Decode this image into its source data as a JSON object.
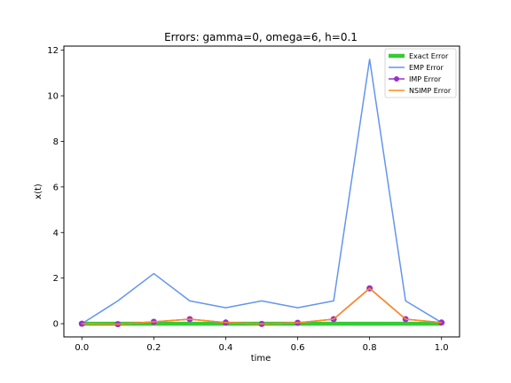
{
  "chart_data": {
    "type": "line",
    "title": "Errors: gamma=0, omega=6, h=0.1",
    "xlabel": "time",
    "ylabel": "x(t)",
    "xlim": [
      -0.05,
      1.05
    ],
    "ylim": [
      -0.58,
      12.18
    ],
    "xticks": [
      "0.0",
      "0.2",
      "0.4",
      "0.6",
      "0.8",
      "1.0"
    ],
    "yticks": [
      "0",
      "2",
      "4",
      "6",
      "8",
      "10",
      "12"
    ],
    "legend_position": "top-right",
    "x": [
      0.0,
      0.1,
      0.2,
      0.3,
      0.4,
      0.5,
      0.6,
      0.7,
      0.8,
      0.9,
      1.0
    ],
    "series": [
      {
        "name": "Exact Error",
        "color": "#32cd32",
        "style": "thick-line",
        "values": [
          0,
          0,
          0,
          0,
          0,
          0,
          0,
          0,
          0,
          0,
          0
        ]
      },
      {
        "name": "EMP Error",
        "color": "#6495ed",
        "style": "line",
        "values": [
          0.0,
          1.0,
          2.2,
          1.0,
          0.7,
          1.0,
          0.7,
          1.0,
          11.6,
          1.0,
          0.05
        ]
      },
      {
        "name": "IMP Error",
        "color": "#9932cc",
        "style": "line-marker",
        "values": [
          0.0,
          -0.02,
          0.08,
          0.2,
          0.05,
          -0.01,
          0.04,
          0.2,
          1.55,
          0.2,
          0.05
        ]
      },
      {
        "name": "NSIMP Error",
        "color": "#ff8c1a",
        "style": "line",
        "values": [
          0.0,
          -0.02,
          0.08,
          0.2,
          0.05,
          -0.01,
          0.04,
          0.2,
          1.55,
          0.2,
          0.05
        ]
      }
    ]
  }
}
